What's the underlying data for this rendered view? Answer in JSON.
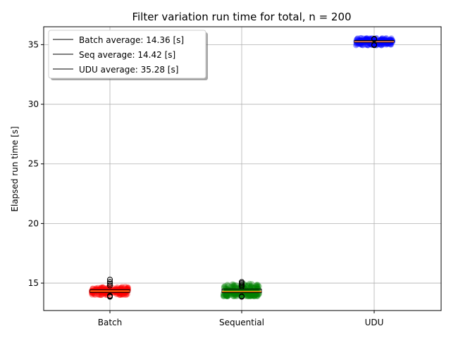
{
  "chart_data": {
    "type": "scatter",
    "title": "Filter variation run time for total, n = 200",
    "xlabel": "",
    "ylabel": "Elapsed run time [s]",
    "categories": [
      "Batch",
      "Sequential",
      "UDU"
    ],
    "ylim": [
      12.7,
      36.5
    ],
    "yticks": [
      15,
      20,
      25,
      30,
      35
    ],
    "grid": true,
    "legend": {
      "placement": "top-left",
      "entries": [
        "Batch average: 14.36 [s]",
        "Seq average: 14.42 [s]",
        "UDU average: 35.28 [s]"
      ]
    },
    "series": [
      {
        "category": "Batch",
        "color": "#ff0000",
        "mean": 14.36,
        "median": 14.33,
        "q1": 14.22,
        "q3": 14.45,
        "spread": [
          14.0,
          14.7
        ],
        "outliers": [
          13.85,
          13.9,
          13.95,
          14.8,
          14.95,
          15.1,
          15.3
        ]
      },
      {
        "category": "Sequential",
        "color": "#008000",
        "mean": 14.42,
        "median": 14.3,
        "q1": 14.2,
        "q3": 14.5,
        "spread": [
          13.9,
          15.1
        ],
        "outliers": [
          13.85,
          13.9,
          14.7,
          14.8,
          14.9,
          15.0,
          15.1
        ]
      },
      {
        "category": "UDU",
        "color": "#0000ff",
        "mean": 35.28,
        "median": 35.25,
        "q1": 35.2,
        "q3": 35.35,
        "spread": [
          34.95,
          35.55
        ],
        "outliers": [
          34.95,
          35.0,
          35.45,
          35.5
        ]
      }
    ]
  }
}
